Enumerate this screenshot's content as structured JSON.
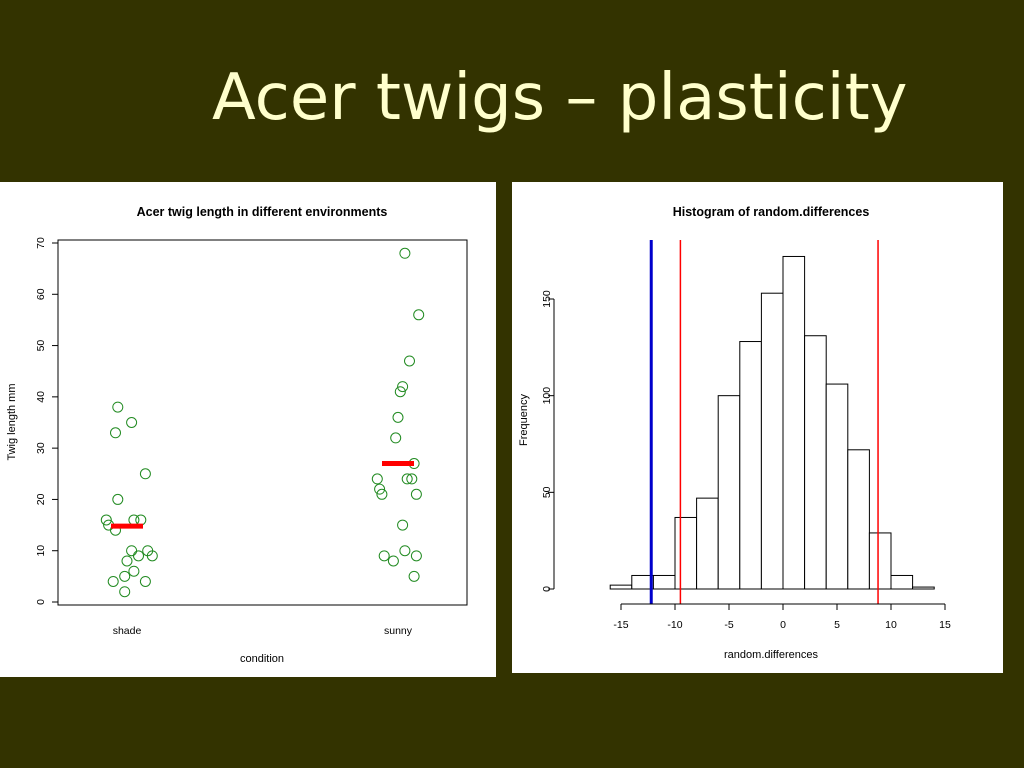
{
  "slide": {
    "title": "Acer twigs – plasticity",
    "background": "#333300",
    "title_color": "#FFFFCC"
  },
  "chart_data": [
    {
      "type": "scatter",
      "title": "Acer twig length in different environments",
      "xlabel": "condition",
      "ylabel": "Twig length mm",
      "categories": [
        "shade",
        "sunny"
      ],
      "ylim": [
        0,
        70
      ],
      "yticks": [
        0,
        10,
        20,
        30,
        40,
        50,
        60,
        70
      ],
      "point_color": "#228B22",
      "mean_color": "#FF0000",
      "series": [
        {
          "category": "shade",
          "values": [
            38,
            35,
            33,
            25,
            20,
            16,
            16,
            16,
            15,
            14,
            10,
            10,
            9,
            9,
            8,
            6,
            5,
            4,
            4,
            2
          ],
          "jitter": [
            -0.04,
            0.02,
            -0.05,
            0.08,
            -0.04,
            -0.09,
            0.03,
            0.06,
            -0.08,
            -0.05,
            0.02,
            0.09,
            0.05,
            0.11,
            0.0,
            0.03,
            -0.01,
            -0.06,
            0.08,
            -0.01
          ],
          "mean": 14.8
        },
        {
          "category": "sunny",
          "values": [
            68,
            56,
            47,
            42,
            41,
            36,
            32,
            27,
            24,
            24,
            24,
            22,
            21,
            21,
            15,
            10,
            9,
            9,
            8,
            5
          ],
          "jitter": [
            0.03,
            0.09,
            0.05,
            0.02,
            0.01,
            0.0,
            -0.01,
            0.07,
            0.04,
            0.06,
            -0.09,
            -0.08,
            0.08,
            -0.07,
            0.02,
            0.03,
            -0.06,
            0.08,
            -0.02,
            0.07
          ],
          "mean": 27
        }
      ]
    },
    {
      "type": "bar",
      "title": "Histogram of random.differences",
      "xlabel": "random.differences",
      "ylabel": "Frequency",
      "bin_width": 2,
      "bin_edges": [
        -16,
        -14,
        -12,
        -10,
        -8,
        -6,
        -4,
        -2,
        0,
        2,
        4,
        6,
        8,
        10,
        12,
        14
      ],
      "values": [
        2,
        7,
        7,
        37,
        47,
        100,
        128,
        153,
        172,
        131,
        106,
        72,
        29,
        7,
        1
      ],
      "xlim": [
        -15,
        15
      ],
      "xticks": [
        -15,
        -10,
        -5,
        0,
        5,
        10,
        15
      ],
      "yticks": [
        0,
        50,
        100,
        150
      ],
      "vlines": [
        {
          "x": -12.2,
          "color": "#0000CC"
        },
        {
          "x": -9.5,
          "color": "#FF0000"
        },
        {
          "x": 8.8,
          "color": "#FF0000"
        }
      ]
    }
  ]
}
